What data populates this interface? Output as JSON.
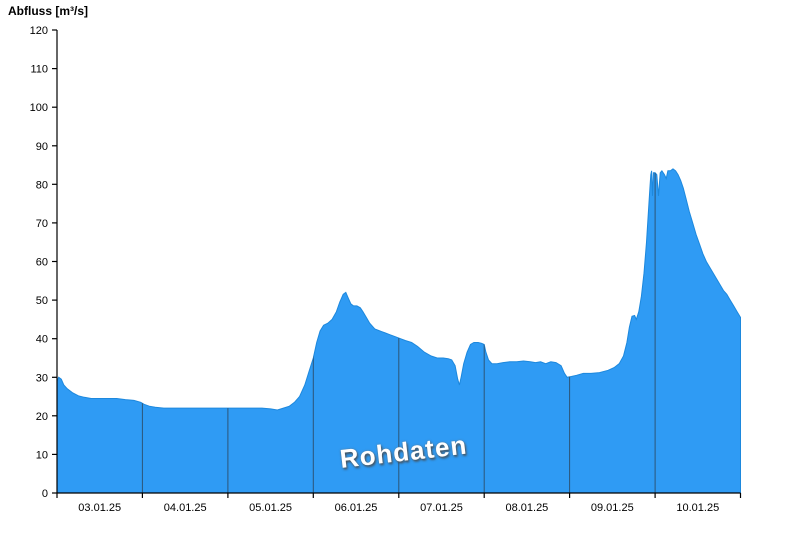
{
  "chart_data": {
    "type": "area",
    "title": "Abfluss [m³/s]",
    "ylabel": "Abfluss [m³/s]",
    "xlabel": "",
    "watermark": "Rohdaten",
    "legend": "none",
    "grid": "vertical day-boundary lines, visible only inside filled area",
    "xlim": [
      0,
      8
    ],
    "ylim": [
      0,
      120
    ],
    "x_unit": "days, 0 = 03.01.25 00:00",
    "y_ticks": [
      0,
      10,
      20,
      30,
      40,
      50,
      60,
      70,
      80,
      90,
      100,
      110,
      120
    ],
    "x_tick_labels": [
      "03.01.25",
      "04.01.25",
      "05.01.25",
      "06.01.25",
      "07.01.25",
      "08.01.25",
      "09.01.25",
      "10.01.25"
    ],
    "colors": {
      "fill": "#2f9bf4",
      "stroke": "#1d88dd",
      "grid": "#2c5578",
      "axis": "#000000",
      "background": "#ffffff"
    },
    "series": [
      {
        "name": "Abfluss Rohdaten",
        "points": [
          [
            0.0,
            29.0
          ],
          [
            0.02,
            30.0
          ],
          [
            0.05,
            29.5
          ],
          [
            0.08,
            28.0
          ],
          [
            0.12,
            27.0
          ],
          [
            0.18,
            26.0
          ],
          [
            0.25,
            25.2
          ],
          [
            0.32,
            24.8
          ],
          [
            0.4,
            24.5
          ],
          [
            0.5,
            24.5
          ],
          [
            0.6,
            24.5
          ],
          [
            0.7,
            24.5
          ],
          [
            0.8,
            24.2
          ],
          [
            0.9,
            24.0
          ],
          [
            0.98,
            23.5
          ],
          [
            1.02,
            23.0
          ],
          [
            1.08,
            22.5
          ],
          [
            1.15,
            22.2
          ],
          [
            1.25,
            22.0
          ],
          [
            1.4,
            22.0
          ],
          [
            1.6,
            22.0
          ],
          [
            1.8,
            22.0
          ],
          [
            2.0,
            22.0
          ],
          [
            2.2,
            22.0
          ],
          [
            2.4,
            22.0
          ],
          [
            2.5,
            21.8
          ],
          [
            2.58,
            21.5
          ],
          [
            2.65,
            22.0
          ],
          [
            2.72,
            22.5
          ],
          [
            2.78,
            23.5
          ],
          [
            2.84,
            25.0
          ],
          [
            2.9,
            28.0
          ],
          [
            2.95,
            31.5
          ],
          [
            3.0,
            35.0
          ],
          [
            3.04,
            39.0
          ],
          [
            3.08,
            42.0
          ],
          [
            3.12,
            43.5
          ],
          [
            3.17,
            44.0
          ],
          [
            3.22,
            45.0
          ],
          [
            3.27,
            47.0
          ],
          [
            3.31,
            49.5
          ],
          [
            3.35,
            51.5
          ],
          [
            3.38,
            52.0
          ],
          [
            3.41,
            50.5
          ],
          [
            3.44,
            49.0
          ],
          [
            3.47,
            48.5
          ],
          [
            3.51,
            48.5
          ],
          [
            3.55,
            48.0
          ],
          [
            3.58,
            47.0
          ],
          [
            3.62,
            45.5
          ],
          [
            3.66,
            44.0
          ],
          [
            3.72,
            42.5
          ],
          [
            3.78,
            42.0
          ],
          [
            3.84,
            41.5
          ],
          [
            3.9,
            41.0
          ],
          [
            3.96,
            40.5
          ],
          [
            4.02,
            40.0
          ],
          [
            4.08,
            39.5
          ],
          [
            4.15,
            39.0
          ],
          [
            4.22,
            38.0
          ],
          [
            4.3,
            36.5
          ],
          [
            4.38,
            35.5
          ],
          [
            4.45,
            35.0
          ],
          [
            4.52,
            35.0
          ],
          [
            4.58,
            34.8
          ],
          [
            4.62,
            34.5
          ],
          [
            4.66,
            33.0
          ],
          [
            4.69,
            29.5
          ],
          [
            4.71,
            28.0
          ],
          [
            4.73,
            30.0
          ],
          [
            4.76,
            33.5
          ],
          [
            4.8,
            36.5
          ],
          [
            4.84,
            38.5
          ],
          [
            4.88,
            39.0
          ],
          [
            4.93,
            39.0
          ],
          [
            4.97,
            38.8
          ],
          [
            5.0,
            38.5
          ],
          [
            5.02,
            36.5
          ],
          [
            5.05,
            34.5
          ],
          [
            5.09,
            33.5
          ],
          [
            5.15,
            33.5
          ],
          [
            5.22,
            33.8
          ],
          [
            5.3,
            34.0
          ],
          [
            5.38,
            34.0
          ],
          [
            5.46,
            34.2
          ],
          [
            5.54,
            34.0
          ],
          [
            5.6,
            33.8
          ],
          [
            5.66,
            34.0
          ],
          [
            5.72,
            33.5
          ],
          [
            5.78,
            34.0
          ],
          [
            5.84,
            33.8
          ],
          [
            5.9,
            33.0
          ],
          [
            5.94,
            31.0
          ],
          [
            5.97,
            30.0
          ],
          [
            6.02,
            30.2
          ],
          [
            6.08,
            30.5
          ],
          [
            6.16,
            31.0
          ],
          [
            6.25,
            31.0
          ],
          [
            6.35,
            31.2
          ],
          [
            6.45,
            31.8
          ],
          [
            6.52,
            32.5
          ],
          [
            6.58,
            33.5
          ],
          [
            6.63,
            35.5
          ],
          [
            6.67,
            39.0
          ],
          [
            6.7,
            43.0
          ],
          [
            6.73,
            45.8
          ],
          [
            6.76,
            46.0
          ],
          [
            6.78,
            45.0
          ],
          [
            6.81,
            47.0
          ],
          [
            6.84,
            51.0
          ],
          [
            6.87,
            57.0
          ],
          [
            6.9,
            65.0
          ],
          [
            6.92,
            72.0
          ],
          [
            6.94,
            79.0
          ],
          [
            6.95,
            82.5
          ],
          [
            6.96,
            83.5
          ],
          [
            6.97,
            77.0
          ],
          [
            6.98,
            83.0
          ],
          [
            7.0,
            83.0
          ],
          [
            7.02,
            82.5
          ],
          [
            7.04,
            77.0
          ],
          [
            7.06,
            83.0
          ],
          [
            7.08,
            83.5
          ],
          [
            7.11,
            82.5
          ],
          [
            7.13,
            81.5
          ],
          [
            7.15,
            83.5
          ],
          [
            7.18,
            83.5
          ],
          [
            7.21,
            84.0
          ],
          [
            7.24,
            83.5
          ],
          [
            7.27,
            82.5
          ],
          [
            7.3,
            81.0
          ],
          [
            7.33,
            79.0
          ],
          [
            7.36,
            76.5
          ],
          [
            7.4,
            73.0
          ],
          [
            7.44,
            70.0
          ],
          [
            7.48,
            67.0
          ],
          [
            7.52,
            64.5
          ],
          [
            7.56,
            62.0
          ],
          [
            7.6,
            60.0
          ],
          [
            7.64,
            58.5
          ],
          [
            7.68,
            57.0
          ],
          [
            7.72,
            55.5
          ],
          [
            7.76,
            54.0
          ],
          [
            7.8,
            52.5
          ],
          [
            7.84,
            51.5
          ],
          [
            7.88,
            50.0
          ],
          [
            7.92,
            48.5
          ],
          [
            7.96,
            47.0
          ],
          [
            8.0,
            45.5
          ]
        ]
      }
    ]
  }
}
